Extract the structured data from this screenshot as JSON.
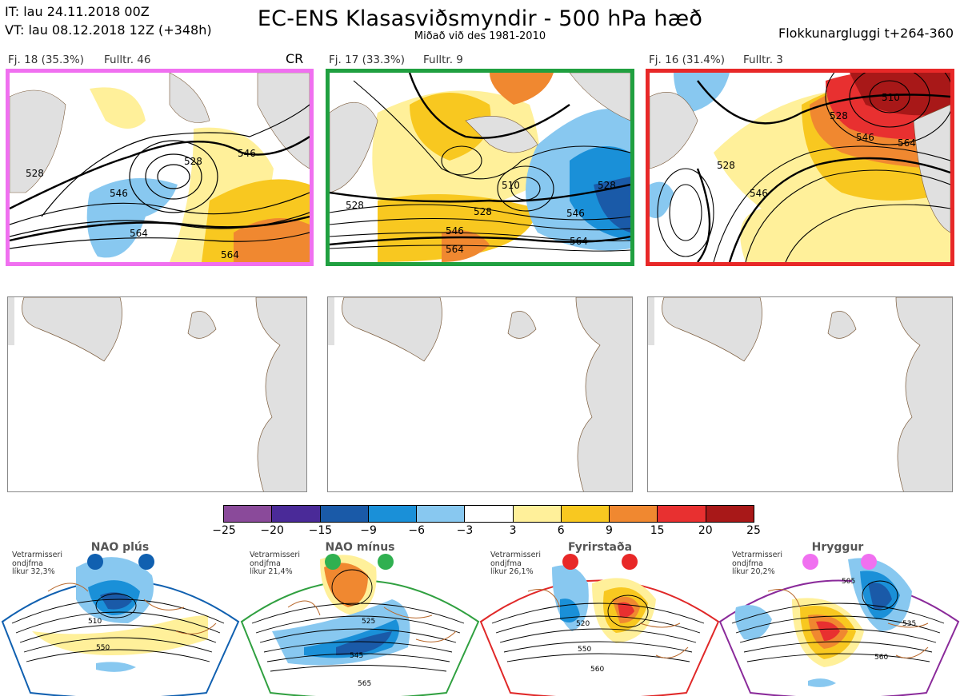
{
  "header": {
    "it": "IT: lau 24.11.2018 00Z",
    "vt": "VT: lau 08.12.2018 12Z  (+348h)",
    "title": "EC-ENS Klasasviðsmyndir - 500 hPa hæð",
    "subtitle": "Miðað við des 1981-2010",
    "window": "Flokkunargluggi t+264-360"
  },
  "clusters": [
    {
      "label": "Fj. 18 (35.3%)",
      "full": "Fulltr. 46",
      "tag": "CR",
      "border": "#f070f0",
      "contours": [
        "528",
        "546",
        "564",
        "528",
        "546",
        "564"
      ]
    },
    {
      "label": "Fj. 17 (33.3%)",
      "full": "Fulltr. 9",
      "tag": "",
      "border": "#20a040",
      "contours": [
        "510",
        "528",
        "546",
        "564",
        "528",
        "546",
        "564"
      ]
    },
    {
      "label": "Fj. 16 (31.4%)",
      "full": "Fulltr. 3",
      "tag": "",
      "border": "#e82828",
      "contours": [
        "510",
        "528",
        "546",
        "564",
        "528",
        "546"
      ]
    }
  ],
  "colorbar": {
    "ticks": [
      "−25",
      "−20",
      "−15",
      "−9",
      "−6",
      "−3",
      "3",
      "6",
      "9",
      "15",
      "20",
      "25"
    ],
    "colors": [
      "#8a4a9a",
      "#4a2a98",
      "#1a5aa8",
      "#1a90d8",
      "#88c8f0",
      "#ffffff",
      "#fff09a",
      "#f8c820",
      "#f08830",
      "#e83030",
      "#a81818"
    ]
  },
  "regimes": [
    {
      "name": "NAO plús",
      "note": "Vetrarmisseri\nondjfma\nlíkur 32,3%",
      "color": "#1060b0",
      "dot": "#1060b0",
      "contours": [
        "510",
        "550"
      ]
    },
    {
      "name": "NAO mínus",
      "note": "Vetrarmisseri\nondjfma\nlíkur 21,4%",
      "color": "#30a040",
      "dot": "#30b050",
      "contours": [
        "525",
        "545",
        "565"
      ]
    },
    {
      "name": "Fyrirstaða",
      "note": "Vetrarmisseri\nondjfma\nlíkur 26,1%",
      "color": "#e02828",
      "dot": "#e82828",
      "contours": [
        "520",
        "550",
        "560"
      ]
    },
    {
      "name": "Hryggur",
      "note": "Vetrarmisseri\nondjfma\nlíkur 20,2%",
      "color": "#8a2a9a",
      "dot": "#f070f0",
      "contours": [
        "505",
        "535",
        "560"
      ]
    }
  ]
}
